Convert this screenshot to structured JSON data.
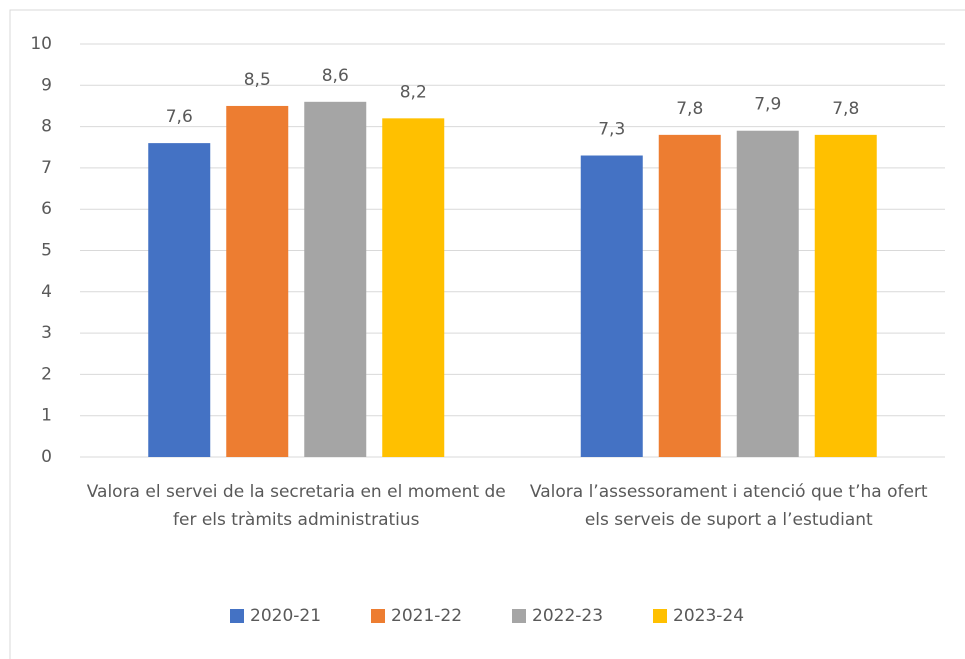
{
  "chart_data": {
    "type": "bar",
    "categories": [
      "Valora el servei de la secretaria en el moment de fer els tràmits administratius",
      "Valora l’assessorament i atenció que t’ha ofert els serveis de suport a l’estudiant"
    ],
    "series": [
      {
        "name": "2020-21",
        "color": "#4472c4",
        "values": [
          7.6,
          7.3
        ],
        "value_labels": [
          "7,6",
          "7,3"
        ]
      },
      {
        "name": "2021-22",
        "color": "#ed7d31",
        "values": [
          8.5,
          7.8
        ],
        "value_labels": [
          "8,5",
          "7,8"
        ]
      },
      {
        "name": "2022-23",
        "color": "#a5a5a5",
        "values": [
          8.6,
          7.9
        ],
        "value_labels": [
          "8,6",
          "7,9"
        ]
      },
      {
        "name": "2023-24",
        "color": "#ffc000",
        "values": [
          8.2,
          7.8
        ],
        "value_labels": [
          "8,2",
          "7,8"
        ]
      }
    ],
    "ylim": [
      0,
      10
    ],
    "yticks": [
      0,
      1,
      2,
      3,
      4,
      5,
      6,
      7,
      8,
      9,
      10
    ],
    "grid": true,
    "legend": "bottom"
  }
}
